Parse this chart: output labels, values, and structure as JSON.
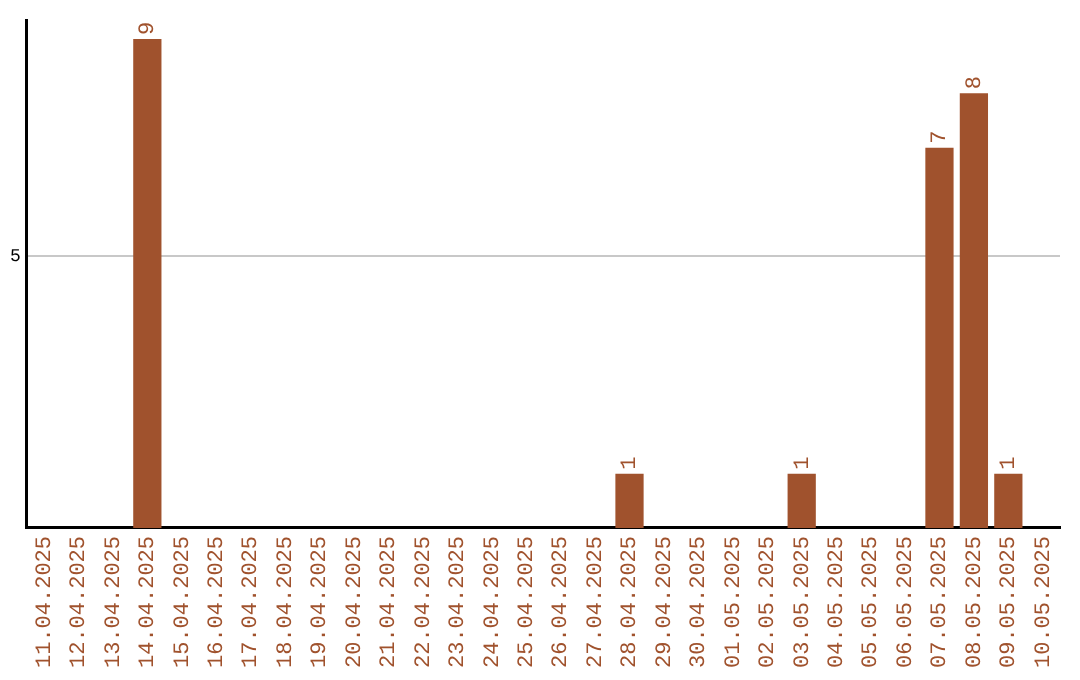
{
  "chart_data": {
    "type": "bar",
    "categories": [
      "11.04.2025",
      "12.04.2025",
      "13.04.2025",
      "14.04.2025",
      "15.04.2025",
      "16.04.2025",
      "17.04.2025",
      "18.04.2025",
      "19.04.2025",
      "20.04.2025",
      "21.04.2025",
      "22.04.2025",
      "23.04.2025",
      "24.04.2025",
      "25.04.2025",
      "26.04.2025",
      "27.04.2025",
      "28.04.2025",
      "29.04.2025",
      "30.04.2025",
      "01.05.2025",
      "02.05.2025",
      "03.05.2025",
      "04.05.2025",
      "05.05.2025",
      "06.05.2025",
      "07.05.2025",
      "08.05.2025",
      "09.05.2025",
      "10.05.2025"
    ],
    "values": [
      0,
      0,
      0,
      9,
      0,
      0,
      0,
      0,
      0,
      0,
      0,
      0,
      0,
      0,
      0,
      0,
      0,
      1,
      0,
      0,
      0,
      0,
      1,
      0,
      0,
      0,
      7,
      8,
      1,
      0
    ],
    "value_labels": [
      null,
      null,
      null,
      "9",
      null,
      null,
      null,
      null,
      null,
      null,
      null,
      null,
      null,
      null,
      null,
      null,
      null,
      "1",
      null,
      null,
      null,
      null,
      "1",
      null,
      null,
      null,
      "7",
      "8",
      "1",
      null
    ],
    "color": "#a0522d",
    "ylim": [
      0,
      9.35
    ],
    "yticks": [
      5
    ],
    "grid": "y",
    "legend": false
  }
}
